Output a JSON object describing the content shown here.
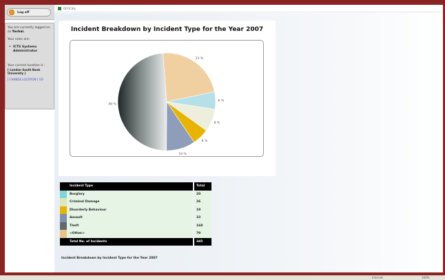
{
  "sidebar": {
    "logoff_label": "Log off",
    "logged_in_text": "You are currently logged on as ",
    "user_name": "Yochai.",
    "roles_label": "Your roles are:",
    "roles": [
      "ICTS Systems Administrator"
    ],
    "location_label": "Your current location is :",
    "location_name": "[ London South Bank University ]",
    "change_location": "[ CHANGE LOCATION ] GO"
  },
  "header": {
    "breadcrumb": "OFFICIAL"
  },
  "chart_data": {
    "type": "pie",
    "title": "Incident Breakdown by Incident Type for the Year 2007",
    "slices": [
      {
        "label": "Burglary",
        "value": 20,
        "color": "#b6e0e8",
        "pct_label": "6 %"
      },
      {
        "label": "Criminal Damage",
        "value": 26,
        "color": "#eeeedd",
        "pct_label": "8 %"
      },
      {
        "label": "Disorderly Behaviour",
        "value": 19,
        "color": "#e8b400",
        "pct_label": "6 %"
      },
      {
        "label": "Assault",
        "value": 33,
        "color": "#8e9eba",
        "pct_label": "10 %"
      },
      {
        "label": "Theft",
        "value": 168,
        "color": "#8a9090",
        "pct_label": "49 %"
      },
      {
        "label": "<Other>",
        "value": 79,
        "color": "#f0d0a0",
        "pct_label": "23 %"
      }
    ]
  },
  "table": {
    "header_type": "Incident Type",
    "header_total": "Total",
    "rows": [
      {
        "type": "Burglary",
        "total": "20",
        "color": "#7fd6d8"
      },
      {
        "type": "Criminal Damage",
        "total": "26",
        "color": "#dfe6b8"
      },
      {
        "type": "Disorderly Behaviour",
        "total": "19",
        "color": "#e8b400"
      },
      {
        "type": "Assault",
        "total": "33",
        "color": "#7f8fb0"
      },
      {
        "type": "Theft",
        "total": "168",
        "color": "#5f6a6a"
      },
      {
        "type": "<Other>",
        "total": "79",
        "color": "#e8c48a"
      }
    ],
    "footer_label": "Total No. of Incidents",
    "footer_total": "345"
  },
  "caption": "Incident Breakdown by Incident Type for the Year 2007",
  "status": {
    "zone": "Internet",
    "zoom": "100%"
  }
}
